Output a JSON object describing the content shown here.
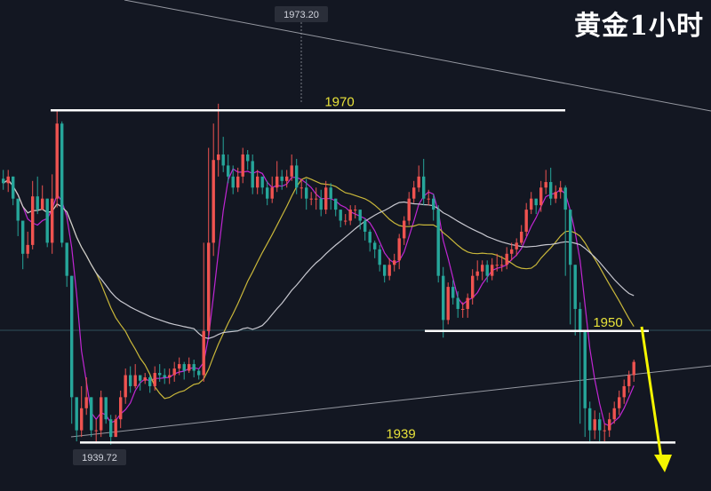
{
  "title": "黄金1小时",
  "colors": {
    "background": "#131722",
    "up": "#ef5350",
    "down": "#26a69a",
    "ma_fast": "#c026d3",
    "ma_mid": "#c9b73a",
    "ma_slow": "#c8c8d0",
    "level_line": "#ffffff",
    "level_text": "#e8e23a",
    "arrow": "#f5f500",
    "trendline": "#9598a1"
  },
  "chart_data": {
    "type": "candlestick",
    "title": "黄金1小时",
    "ylim": [
      1935.5,
      1980.0
    ],
    "grid": false,
    "price_tags": {
      "high": "1973.20",
      "low": "1939.72"
    },
    "levels": [
      {
        "label": "1970",
        "value": 1970.0
      },
      {
        "label": "1950",
        "value": 1950.0
      },
      {
        "label": "1939",
        "value": 1939.9
      }
    ],
    "annotations": [
      "descending trendline",
      "ascending trendline",
      "yellow arrow pointing down"
    ],
    "closes": [
      1963.4,
      1964.0,
      1962.0,
      1960.0,
      1957.0,
      1957.8,
      1962.2,
      1961.0,
      1962.0,
      1958.0,
      1962.0,
      1968.8,
      1958.0,
      1955.0,
      1944.0,
      1941.0,
      1943.0,
      1944.0,
      1941.0,
      1941.0,
      1944.0,
      1942.0,
      1940.4,
      1942.0,
      1944.0,
      1946.0,
      1945.0,
      1946.0,
      1945.5,
      1945.8,
      1945.0,
      1946.2,
      1946.0,
      1945.8,
      1946.0,
      1946.6,
      1947.0,
      1946.4,
      1947.0,
      1946.4,
      1946.0,
      1950.0,
      1958.0,
      1965.5,
      1966.0,
      1965.0,
      1964.0,
      1963.0,
      1964.0,
      1966.0,
      1965.4,
      1963.0,
      1964.0,
      1963.0,
      1962.0,
      1963.0,
      1964.0,
      1963.6,
      1964.0,
      1965.0,
      1963.0,
      1963.0,
      1962.0,
      1962.0,
      1962.0,
      1961.0,
      1963.0,
      1962.0,
      1961.0,
      1960.0,
      1960.0,
      1961.0,
      1961.0,
      1960.0,
      1959.0,
      1958.0,
      1957.4,
      1956.0,
      1955.0,
      1956.0,
      1956.4,
      1958.4,
      1960.0,
      1962.0,
      1963.0,
      1964.0,
      1962.0,
      1962.0,
      1961.0,
      1955.0,
      1951.0,
      1954.0,
      1953.0,
      1952.0,
      1952.0,
      1953.0,
      1955.0,
      1955.4,
      1956.0,
      1955.0,
      1956.0,
      1956.0,
      1956.0,
      1957.0,
      1957.4,
      1958.0,
      1959.0,
      1961.0,
      1962.0,
      1961.4,
      1963.0,
      1963.5,
      1962.0,
      1962.6,
      1963.0,
      1961.0,
      1956.0,
      1952.0,
      1950.0,
      1943.0,
      1941.0,
      1942.0,
      1941.0,
      1941.0,
      1942.0,
      1943.0,
      1944.0,
      1945.0,
      1946.0,
      1947.2
    ],
    "highs": [
      1964.6,
      1964.6,
      1964.0,
      1961.6,
      1958.0,
      1959.0,
      1963.6,
      1964.0,
      1963.2,
      1962.0,
      1964.2,
      1970.0,
      1969.0,
      1958.0,
      1955.0,
      1944.0,
      1945.0,
      1945.8,
      1944.0,
      1942.0,
      1944.6,
      1944.0,
      1942.4,
      1942.4,
      1944.6,
      1946.6,
      1946.8,
      1947.0,
      1946.0,
      1946.2,
      1946.0,
      1946.8,
      1947.0,
      1946.6,
      1946.6,
      1947.2,
      1947.6,
      1947.2,
      1947.6,
      1947.4,
      1946.6,
      1958.0,
      1966.6,
      1968.8,
      1970.6,
      1967.6,
      1966.0,
      1965.0,
      1964.8,
      1966.6,
      1966.4,
      1966.0,
      1964.6,
      1964.0,
      1963.6,
      1964.0,
      1965.4,
      1964.6,
      1964.6,
      1966.0,
      1965.6,
      1963.8,
      1963.8,
      1962.6,
      1963.0,
      1962.8,
      1963.6,
      1963.4,
      1962.0,
      1961.0,
      1960.6,
      1961.4,
      1961.4,
      1961.0,
      1960.2,
      1959.2,
      1958.2,
      1957.8,
      1956.0,
      1956.6,
      1957.0,
      1958.8,
      1960.4,
      1962.6,
      1963.6,
      1965.0,
      1965.6,
      1962.8,
      1962.4,
      1961.4,
      1955.8,
      1954.4,
      1954.6,
      1953.6,
      1952.6,
      1953.4,
      1955.6,
      1956.4,
      1956.4,
      1956.4,
      1956.6,
      1957.0,
      1956.8,
      1957.6,
      1958.0,
      1958.4,
      1959.6,
      1961.6,
      1962.6,
      1962.0,
      1963.6,
      1964.6,
      1964.8,
      1963.2,
      1963.6,
      1963.2,
      1961.0,
      1956.0,
      1952.6,
      1949.6,
      1943.6,
      1942.8,
      1942.6,
      1941.6,
      1942.6,
      1943.6,
      1944.6,
      1945.6,
      1946.4,
      1947.4
    ],
    "lows": [
      1962.8,
      1962.6,
      1961.4,
      1958.6,
      1955.6,
      1956.6,
      1957.4,
      1960.6,
      1961.4,
      1957.6,
      1957.0,
      1961.2,
      1957.6,
      1954.0,
      1941.6,
      1940.0,
      1940.4,
      1942.4,
      1940.4,
      1939.8,
      1940.4,
      1941.6,
      1939.7,
      1940.4,
      1941.2,
      1943.4,
      1944.4,
      1944.8,
      1944.6,
      1945.2,
      1944.4,
      1944.6,
      1945.4,
      1945.2,
      1945.2,
      1945.4,
      1946.0,
      1945.6,
      1946.2,
      1945.8,
      1945.6,
      1945.4,
      1949.6,
      1956.8,
      1964.0,
      1964.4,
      1963.4,
      1962.4,
      1962.6,
      1963.4,
      1964.6,
      1962.4,
      1962.4,
      1962.4,
      1961.4,
      1961.6,
      1962.6,
      1962.8,
      1963.0,
      1963.6,
      1962.4,
      1962.0,
      1961.0,
      1961.4,
      1961.0,
      1960.4,
      1960.6,
      1961.0,
      1960.4,
      1959.4,
      1959.6,
      1959.6,
      1960.2,
      1959.2,
      1958.2,
      1957.2,
      1956.6,
      1955.4,
      1954.4,
      1954.6,
      1955.4,
      1955.6,
      1957.8,
      1959.6,
      1961.6,
      1962.6,
      1961.4,
      1961.4,
      1960.0,
      1954.4,
      1949.4,
      1950.6,
      1952.4,
      1951.2,
      1951.2,
      1951.2,
      1952.4,
      1954.6,
      1954.6,
      1954.4,
      1954.6,
      1955.4,
      1955.4,
      1955.6,
      1956.4,
      1956.8,
      1957.8,
      1958.6,
      1960.6,
      1960.6,
      1960.8,
      1962.4,
      1961.4,
      1961.6,
      1962.0,
      1955.0,
      1950.6,
      1949.6,
      1941.6,
      1940.4,
      1940.0,
      1940.2,
      1940.0,
      1940.0,
      1940.4,
      1941.6,
      1942.4,
      1943.4,
      1944.4,
      1945.4
    ]
  }
}
